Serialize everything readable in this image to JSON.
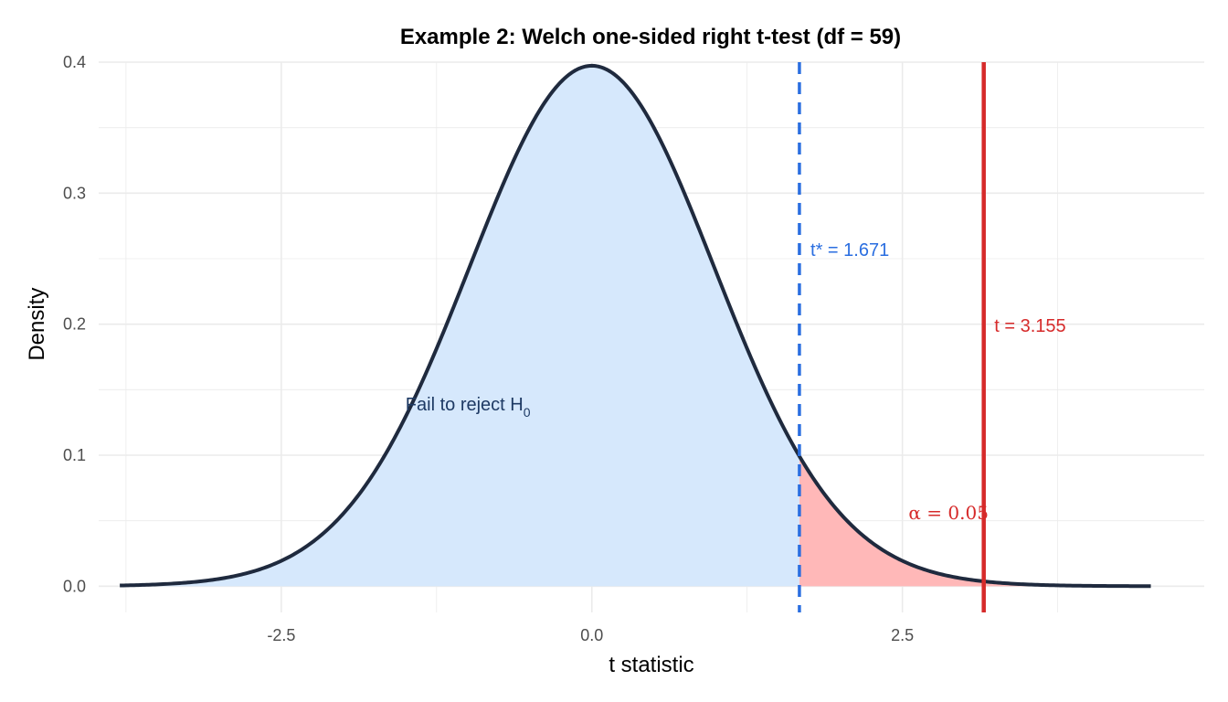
{
  "chart_data": {
    "type": "line",
    "title": "Example 2: Welch one-sided right t-test (df = 59)",
    "xlabel": "t statistic",
    "ylabel": "Density",
    "df": 59,
    "xlim": [
      -3.97,
      4.93
    ],
    "ylim": [
      -0.02,
      0.4
    ],
    "x_ticks": [
      -2.5,
      0.0,
      2.5
    ],
    "x_tick_labels": [
      "-2.5",
      "0.0",
      "2.5"
    ],
    "y_ticks": [
      0.0,
      0.1,
      0.2,
      0.3,
      0.4
    ],
    "y_tick_labels": [
      "0.0",
      "0.1",
      "0.2",
      "0.3",
      "0.4"
    ],
    "curve_range": [
      -3.8,
      4.5
    ],
    "critical_value": 1.671,
    "test_statistic": 3.155,
    "alpha": 0.05,
    "grid": true,
    "regions": [
      {
        "name": "acceptance",
        "from": -3.8,
        "to": 1.671,
        "color": "#d6e8fc"
      },
      {
        "name": "rejection",
        "from": 1.671,
        "to": 4.5,
        "color": "#ffb8b8"
      }
    ],
    "annotations": {
      "critical": {
        "text": "t* = 1.671",
        "x": 1.76,
        "y": 0.257,
        "color": "#2a6ee0"
      },
      "statistic": {
        "text": "t = 3.155",
        "x": 3.24,
        "y": 0.199,
        "color": "#d62a2a"
      },
      "fail_prefix": {
        "text": "Fail to reject H",
        "x": -1.5,
        "y": 0.139,
        "color": "#1e3a64"
      },
      "fail_subscript": {
        "text": "0"
      },
      "alpha_symbol": {
        "text": "α",
        "x": 2.55,
        "y": 0.056,
        "color": "#d62a2a"
      },
      "alpha_eq": {
        "text": " = 0.05"
      }
    },
    "colors": {
      "curve": "#1f2a3e",
      "critical_line": "#2a6ee0",
      "statistic_line": "#d62a2a",
      "grid": "#ebebeb"
    }
  }
}
